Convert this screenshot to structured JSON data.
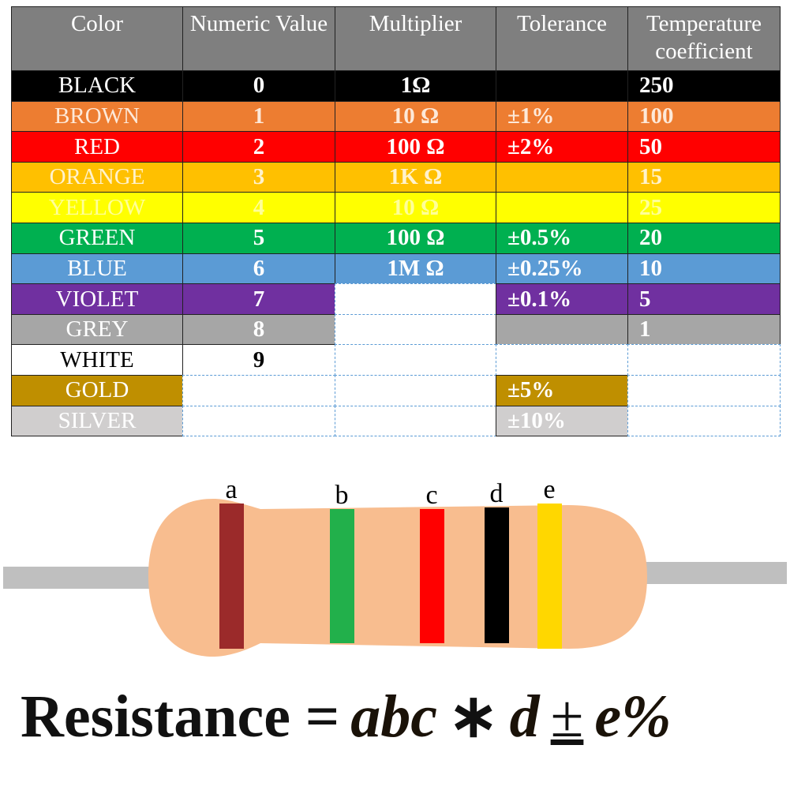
{
  "table": {
    "header": [
      "Color",
      "Numeric Value",
      "Multiplier",
      "Tolerance",
      "Temperature coefficient"
    ],
    "header_background": "#7f7f7f",
    "rows": [
      {
        "cells": [
          "BLACK",
          0,
          "1Ω",
          null,
          250
        ],
        "background": "#000000",
        "text_color": "#ffffff",
        "blank_columns": []
      },
      {
        "cells": [
          "BROWN",
          1,
          "10 Ω",
          "±1%",
          100
        ],
        "background": "#ed7d31",
        "text_color": "#fde9d9",
        "blank_columns": []
      },
      {
        "cells": [
          "RED",
          2,
          "100 Ω",
          "±2%",
          50
        ],
        "background": "#ff0000",
        "text_color": "#ffffff",
        "blank_columns": []
      },
      {
        "cells": [
          "ORANGE",
          3,
          "1K Ω",
          null,
          15
        ],
        "background": "#ffc000",
        "text_color": "#fff2cc",
        "blank_columns": []
      },
      {
        "cells": [
          "YELLOW",
          4,
          "10 Ω",
          null,
          25
        ],
        "background": "#ffff00",
        "text_color": "#ffff99",
        "blank_columns": []
      },
      {
        "cells": [
          "GREEN",
          5,
          "100 Ω",
          "±0.5%",
          20
        ],
        "background": "#00b050",
        "text_color": "#ffffff",
        "blank_columns": []
      },
      {
        "cells": [
          "BLUE",
          6,
          "1M Ω",
          "±0.25%",
          10
        ],
        "background": "#5b9bd5",
        "text_color": "#ffffff",
        "blank_columns": []
      },
      {
        "cells": [
          "VIOLET",
          7,
          null,
          "±0.1%",
          5
        ],
        "background": "#7030a0",
        "text_color": "#ffffff",
        "blank_columns": [
          2
        ]
      },
      {
        "cells": [
          "GREY",
          8,
          null,
          null,
          1
        ],
        "background": "#a6a6a6",
        "text_color": "#ffffff",
        "blank_columns": [
          2
        ]
      },
      {
        "cells": [
          "WHITE",
          9,
          null,
          null,
          null
        ],
        "background": "#ffffff",
        "text_color": "#000000",
        "blank_columns": [
          2,
          3,
          4
        ]
      },
      {
        "cells": [
          "GOLD",
          null,
          null,
          "±5%",
          null
        ],
        "background": "#bf8f00",
        "text_color": "#ffffff",
        "blank_columns": [
          1,
          2,
          4
        ]
      },
      {
        "cells": [
          "SILVER",
          null,
          null,
          "±10%",
          null
        ],
        "background": "#d0cece",
        "text_color": "#ffffff",
        "blank_columns": [
          1,
          2,
          4
        ]
      }
    ]
  },
  "resistor": {
    "bands": [
      {
        "label": "a",
        "color": "#9b2a2a"
      },
      {
        "label": "b",
        "color": "#22b04b"
      },
      {
        "label": "c",
        "color": "#ff0000"
      },
      {
        "label": "d",
        "color": "#000000"
      },
      {
        "label": "e",
        "color": "#ffd700"
      }
    ]
  },
  "formula": [
    "Resistance =",
    "abc",
    "∗",
    "d",
    "±",
    "e%"
  ]
}
